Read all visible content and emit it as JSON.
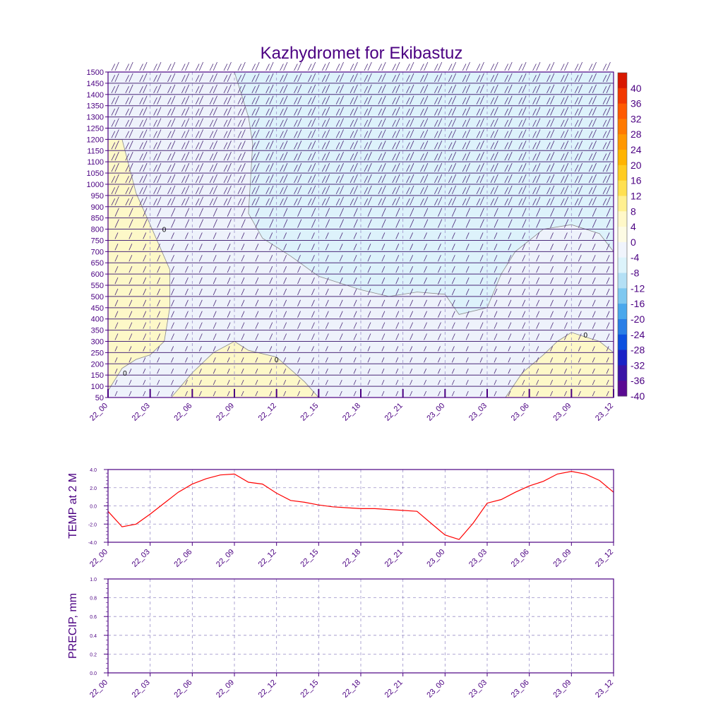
{
  "title": "Kazhydromet for Ekibastuz",
  "chart_data": [
    {
      "type": "heatmap",
      "name": "temperature-wind-cross-section",
      "y_levels": [
        50,
        100,
        150,
        200,
        250,
        300,
        350,
        400,
        450,
        500,
        550,
        600,
        650,
        700,
        750,
        800,
        850,
        900,
        950,
        1000,
        1050,
        1100,
        1150,
        1200,
        1250,
        1300,
        1350,
        1400,
        1450,
        1500
      ],
      "y_tick_labels": [
        "50",
        "100",
        "150",
        "200",
        "250",
        "300",
        "350",
        "400",
        "450",
        "500",
        "550",
        "600",
        "650",
        "700",
        "750",
        "800",
        "850",
        "900",
        "950",
        "1000",
        "1050",
        "1100",
        "1150",
        "1200",
        "1250",
        "1300",
        "1350",
        "1400",
        "1450",
        "1500"
      ],
      "x_tick_labels": [
        "22_00",
        "22_03",
        "22_06",
        "22_09",
        "22_12",
        "22_15",
        "22_18",
        "22_21",
        "23_00",
        "23_03",
        "23_06",
        "23_09",
        "23_12"
      ],
      "x_range_hours": [
        0,
        36
      ],
      "y_range": [
        50,
        1500
      ],
      "contour_label": "0",
      "colorbar_labels": [
        "40",
        "36",
        "32",
        "28",
        "24",
        "20",
        "16",
        "12",
        "8",
        "4",
        "0",
        "-4",
        "-8",
        "-12",
        "-16",
        "-20",
        "-24",
        "-28",
        "-32",
        "-36",
        "-40"
      ],
      "colorbar_colors": [
        "#d81800",
        "#f23800",
        "#ff5a00",
        "#ff7a00",
        "#ff9800",
        "#ffb400",
        "#ffcc20",
        "#ffe050",
        "#fff090",
        "#fff8c8",
        "#fdfbe4",
        "#f0f4fc",
        "#dcf3fb",
        "#b4e0f5",
        "#7ec8f0",
        "#4aa8ec",
        "#2a7fe6",
        "#0c50e0",
        "#1a22c6",
        "#3a14a6",
        "#5a0a92"
      ],
      "regions": [
        {
          "name": "warm-left",
          "band": "0..4",
          "color": "#fdf8c8",
          "boundary_hours": [
            [
              0,
              1200
            ],
            [
              1,
              1200
            ],
            [
              2,
              960
            ],
            [
              3,
              820
            ],
            [
              4.4,
              620
            ],
            [
              4.4,
              450
            ],
            [
              4,
              300
            ],
            [
              3,
              240
            ],
            [
              2,
              220
            ],
            [
              1,
              180
            ],
            [
              0,
              80
            ]
          ]
        },
        {
          "name": "warm-noon",
          "band": "0..4",
          "color": "#fdf8c8",
          "boundary_hours": [
            [
              4.5,
              50
            ],
            [
              6,
              160
            ],
            [
              7.5,
              250
            ],
            [
              9,
              300
            ],
            [
              10,
              260
            ],
            [
              12,
              230
            ],
            [
              14,
              120
            ],
            [
              15,
              50
            ]
          ]
        },
        {
          "name": "warm-right",
          "band": "0..4",
          "color": "#fdf8c8",
          "boundary_hours": [
            [
              28.3,
              50
            ],
            [
              29.5,
              160
            ],
            [
              31,
              240
            ],
            [
              32,
              300
            ],
            [
              33,
              340
            ],
            [
              34,
              320
            ],
            [
              35,
              300
            ],
            [
              36,
              250
            ],
            [
              36,
              50
            ]
          ]
        },
        {
          "name": "cold-upper",
          "band": "-4..-8",
          "color": "#ddf2fb",
          "boundary_hours": [
            [
              9,
              1500
            ],
            [
              10,
              1300
            ],
            [
              10.3,
              1180
            ],
            [
              10,
              870
            ],
            [
              11,
              760
            ],
            [
              12,
              720
            ],
            [
              13,
              680
            ],
            [
              15,
              590
            ],
            [
              18,
              530
            ],
            [
              20,
              500
            ],
            [
              22,
              520
            ],
            [
              24,
              510
            ],
            [
              25,
              420
            ],
            [
              27,
              450
            ],
            [
              28,
              600
            ],
            [
              29,
              700
            ],
            [
              31,
              800
            ],
            [
              33,
              820
            ],
            [
              35,
              780
            ],
            [
              36,
              700
            ],
            [
              36,
              1500
            ]
          ]
        }
      ],
      "contour_labels_at": [
        [
          4,
          800
        ],
        [
          1.2,
          160
        ],
        [
          12,
          220
        ],
        [
          34,
          330
        ]
      ]
    },
    {
      "type": "line",
      "name": "temp-2m",
      "ylabel": "TEMP at 2 M",
      "ylim": [
        -4.0,
        4.0
      ],
      "y_tick_labels": [
        "4.0",
        "2.0",
        "0.0",
        "-2.0",
        "-4.0"
      ],
      "x_tick_labels": [
        "22_00",
        "22_03",
        "22_06",
        "22_09",
        "22_12",
        "22_15",
        "22_18",
        "22_21",
        "23_00",
        "23_03",
        "23_06",
        "23_09",
        "23_12"
      ],
      "series": [
        {
          "name": "TEMP at 2 M",
          "color": "#ff0000",
          "x": [
            0,
            1,
            2,
            3,
            4,
            5,
            6,
            7,
            8,
            9,
            10,
            11,
            12,
            13,
            14,
            15,
            16,
            17,
            18,
            19,
            20,
            21,
            22,
            23,
            24,
            25,
            26,
            27,
            28,
            29,
            30,
            31,
            32,
            33,
            34,
            35,
            36
          ],
          "values": [
            -0.6,
            -2.3,
            -2.0,
            -0.9,
            0.3,
            1.5,
            2.4,
            3.0,
            3.4,
            3.5,
            2.6,
            2.4,
            1.4,
            0.6,
            0.4,
            0.1,
            -0.1,
            -0.2,
            -0.3,
            -0.3,
            -0.4,
            -0.5,
            -0.6,
            -1.9,
            -3.2,
            -3.7,
            -1.9,
            0.3,
            0.7,
            1.5,
            2.2,
            2.7,
            3.5,
            3.8,
            3.5,
            2.8,
            1.5
          ]
        }
      ]
    },
    {
      "type": "line",
      "name": "precipitation",
      "ylabel": "PRECIP, mm",
      "ylim": [
        0.0,
        1.0
      ],
      "y_tick_labels": [
        "1.0",
        "0.8",
        "0.6",
        "0.4",
        "0.2",
        "0.0"
      ],
      "x_tick_labels": [
        "22_00",
        "22_03",
        "22_06",
        "22_09",
        "22_12",
        "22_15",
        "22_18",
        "22_21",
        "23_00",
        "23_03",
        "23_06",
        "23_09",
        "23_12"
      ],
      "series": []
    }
  ]
}
